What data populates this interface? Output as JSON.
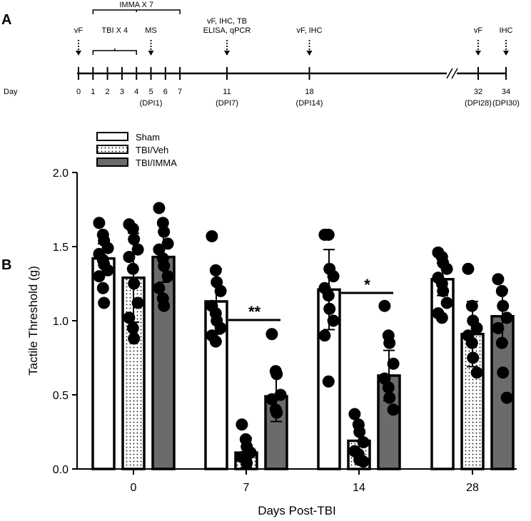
{
  "panels": {
    "a": "A",
    "b": "B"
  },
  "timeline": {
    "imma_label": "IMMA X 7",
    "tbi_label": "TBI X 4",
    "day_prefix": "Day",
    "days": [
      {
        "day": "0",
        "pos": 0
      },
      {
        "day": "1",
        "pos": 1
      },
      {
        "day": "2",
        "pos": 2
      },
      {
        "day": "3",
        "pos": 3
      },
      {
        "day": "4",
        "pos": 4
      },
      {
        "day": "5",
        "pos": 5,
        "dpi": "(DPI1)"
      },
      {
        "day": "6",
        "pos": 6
      },
      {
        "day": "7",
        "pos": 7
      },
      {
        "day": "11",
        "pos": 11,
        "dpi": "(DPI7)"
      },
      {
        "day": "18",
        "pos": 18,
        "dpi": "(DPI14)"
      },
      {
        "day": "32",
        "pos": 32,
        "dpi": "(DPI28)"
      },
      {
        "day": "34",
        "pos": 34,
        "dpi": "(DPI30)"
      }
    ],
    "events": [
      {
        "day": 0,
        "lines": [
          "vF"
        ]
      },
      {
        "day": 5,
        "lines": [
          "MS"
        ]
      },
      {
        "day": 11,
        "lines": [
          "vF, IHC, TB",
          "ELISA, qPCR"
        ]
      },
      {
        "day": 18,
        "lines": [
          "vF, IHC"
        ]
      },
      {
        "day": 32,
        "lines": [
          "vF"
        ]
      },
      {
        "day": 34,
        "lines": [
          "IHC"
        ]
      }
    ]
  },
  "chart_data": {
    "type": "bar",
    "categories": [
      "0",
      "7",
      "14",
      "28"
    ],
    "xlabel": "Days Post-TBI",
    "ylabel": "Tactile Threshold (g)",
    "ylim": [
      0,
      2.0
    ],
    "yticks": [
      "0.0",
      "0.5",
      "1.0",
      "1.5",
      "2.0"
    ],
    "legend_position": "top-left",
    "series": [
      {
        "name": "Sham",
        "fill": "white",
        "color": "#ffffff",
        "values": [
          1.42,
          1.13,
          1.21,
          1.28
        ],
        "err": [
          0.1,
          0.22,
          0.27,
          0.11
        ],
        "points": [
          [
            1.66,
            1.58,
            1.54,
            1.49,
            1.45,
            1.41,
            1.38,
            1.34,
            1.3,
            1.22,
            1.12
          ],
          [
            1.57,
            1.34,
            1.26,
            1.2,
            1.1,
            1.05,
            1.0,
            0.95,
            0.9,
            0.86
          ],
          [
            1.58,
            1.58,
            1.35,
            1.3,
            1.22,
            1.17,
            1.08,
            1.0,
            0.9,
            0.59
          ],
          [
            1.46,
            1.43,
            1.39,
            1.35,
            1.29,
            1.25,
            1.2,
            1.12,
            1.05,
            1.02
          ]
        ]
      },
      {
        "name": "TBI/Veh",
        "fill": "dots",
        "color": "#ffffff",
        "values": [
          1.29,
          0.11,
          0.19,
          0.91
        ],
        "err": [
          0.3,
          0.1,
          0.1,
          0.22
        ],
        "points": [
          [
            1.65,
            1.62,
            1.55,
            1.48,
            1.43,
            1.35,
            1.25,
            1.12,
            1.02,
            0.95,
            0.88
          ],
          [
            0.3,
            0.2,
            0.15,
            0.11,
            0.08,
            0.06,
            0.04
          ],
          [
            0.37,
            0.3,
            0.25,
            0.18,
            0.12,
            0.1,
            0.06,
            0.05
          ],
          [
            1.35,
            1.1,
            1.0,
            0.95,
            0.9,
            0.85,
            0.75,
            0.65
          ]
        ]
      },
      {
        "name": "TBI/IMMA",
        "fill": "gray",
        "color": "#6b6b6b",
        "values": [
          1.43,
          0.49,
          0.63,
          1.03
        ],
        "err": [
          0.17,
          0.17,
          0.17,
          0.18
        ],
        "points": [
          [
            1.76,
            1.66,
            1.6,
            1.52,
            1.48,
            1.42,
            1.37,
            1.3,
            1.22,
            1.15,
            1.1
          ],
          [
            0.91,
            0.66,
            0.64,
            0.5,
            0.47,
            0.4,
            0.38
          ],
          [
            1.1,
            0.9,
            0.85,
            0.71,
            0.61,
            0.55,
            0.48,
            0.4
          ],
          [
            1.28,
            1.2,
            1.1,
            1.02,
            0.95,
            0.85,
            0.65,
            0.48
          ]
        ]
      }
    ],
    "annotations": [
      {
        "text": "**",
        "group": 1
      },
      {
        "text": "*",
        "group": 2
      }
    ]
  }
}
